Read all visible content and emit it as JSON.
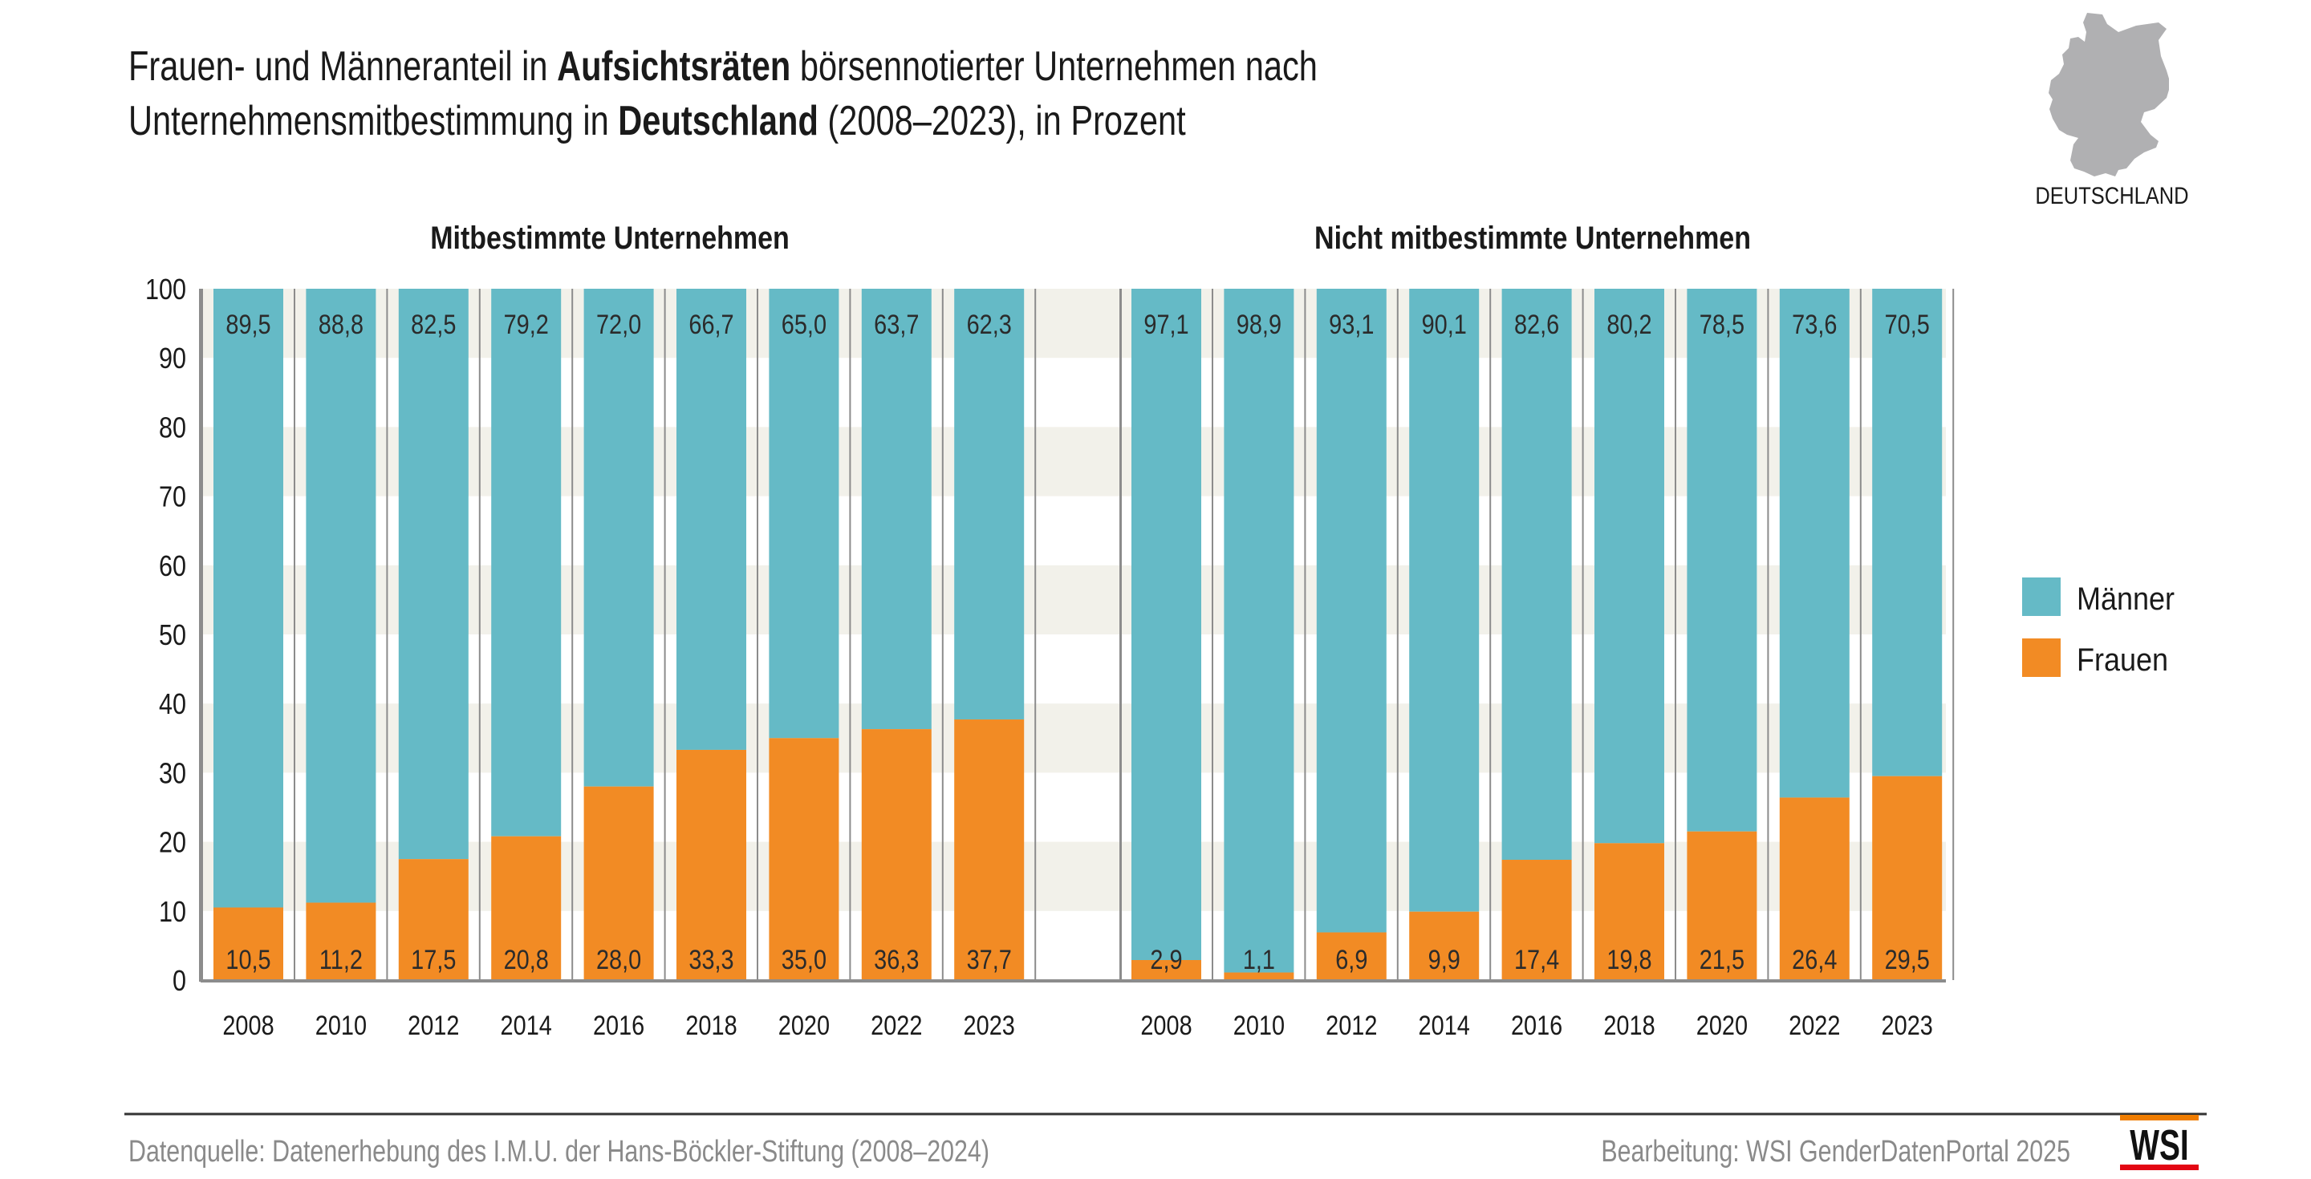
{
  "header": {
    "title_line1_parts": [
      {
        "text": "Frauen- und Männeranteil in ",
        "bold": false
      },
      {
        "text": "Aufsichtsräten",
        "bold": true
      },
      {
        "text": " börsennotierter Unternehmen nach",
        "bold": false
      }
    ],
    "title_line2_parts": [
      {
        "text": "Unternehmensmitbestimmung in ",
        "bold": false
      },
      {
        "text": "Deutschland",
        "bold": true
      },
      {
        "text": " (2008–2023), in Prozent",
        "bold": false
      }
    ],
    "map_label": "DEUTSCHLAND",
    "map_icon": "germany-map-icon"
  },
  "colors": {
    "maenner": "#65bac6",
    "frauen": "#f28b24",
    "stripe": "#f2f1ea",
    "axis": "#8c8c8c",
    "text": "#1a1a1a",
    "footer_text": "#8a8a8a",
    "wsi_orange": "#f07d00",
    "wsi_red": "#e30613"
  },
  "legend": {
    "position": "right",
    "items": [
      {
        "label": "Männer",
        "series": "maenner"
      },
      {
        "label": "Frauen",
        "series": "frauen"
      }
    ]
  },
  "chart_data": [
    {
      "type": "bar",
      "stacked": true,
      "title": "Mitbestimmte Unternehmen",
      "categories": [
        "2008",
        "2010",
        "2012",
        "2014",
        "2016",
        "2018",
        "2020",
        "2022",
        "2023"
      ],
      "series": [
        {
          "name": "Frauen",
          "key": "frauen",
          "values": [
            10.5,
            11.2,
            17.5,
            20.8,
            28.0,
            33.3,
            35.0,
            36.3,
            37.7
          ],
          "labels": [
            "10,5",
            "11,2",
            "17,5",
            "20,8",
            "28,0",
            "33,3",
            "35,0",
            "36,3",
            "37,7"
          ]
        },
        {
          "name": "Männer",
          "key": "maenner",
          "values": [
            89.5,
            88.8,
            82.5,
            79.2,
            72.0,
            66.7,
            65.0,
            63.7,
            62.3
          ],
          "labels": [
            "89,5",
            "88,8",
            "82,5",
            "79,2",
            "72,0",
            "66,7",
            "65,0",
            "63,7",
            "62,3"
          ]
        }
      ],
      "xlabel": "",
      "ylabel": "",
      "ylim": [
        0,
        100
      ],
      "yticks": [
        "0",
        "10",
        "20",
        "30",
        "40",
        "50",
        "60",
        "70",
        "80",
        "90",
        "100"
      ],
      "grid": "alternating horizontal bands"
    },
    {
      "type": "bar",
      "stacked": true,
      "title": "Nicht mitbestimmte Unternehmen",
      "categories": [
        "2008",
        "2010",
        "2012",
        "2014",
        "2016",
        "2018",
        "2020",
        "2022",
        "2023"
      ],
      "series": [
        {
          "name": "Frauen",
          "key": "frauen",
          "values": [
            2.9,
            1.1,
            6.9,
            9.9,
            17.4,
            19.8,
            21.5,
            26.4,
            29.5
          ],
          "labels": [
            "2,9",
            "1,1",
            "6,9",
            "9,9",
            "17,4",
            "19,8",
            "21,5",
            "26,4",
            "29,5"
          ]
        },
        {
          "name": "Männer",
          "key": "maenner",
          "values": [
            97.1,
            98.9,
            93.1,
            90.1,
            82.6,
            80.2,
            78.5,
            73.6,
            70.5
          ],
          "labels": [
            "97,1",
            "98,9",
            "93,1",
            "90,1",
            "82,6",
            "80,2",
            "78,5",
            "73,6",
            "70,5"
          ]
        }
      ],
      "xlabel": "",
      "ylabel": "",
      "ylim": [
        0,
        100
      ],
      "grid": "alternating horizontal bands"
    }
  ],
  "footer": {
    "source": "Datenquelle: Datenerhebung des I.M.U. der Hans-Böckler-Stiftung (2008–2024)",
    "credit": "Bearbeitung: WSI GenderDatenPortal 2025",
    "logo_text": "WSI"
  }
}
